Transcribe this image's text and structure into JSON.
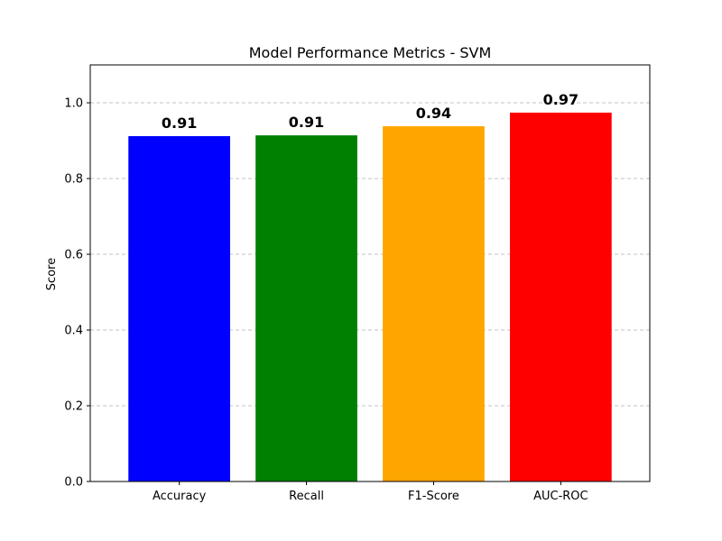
{
  "chart_data": {
    "type": "bar",
    "title": "Model Performance Metrics - SVM",
    "xlabel": "",
    "ylabel": "Score",
    "categories": [
      "Accuracy",
      "Recall",
      "F1-Score",
      "AUC-ROC"
    ],
    "values": [
      0.912,
      0.914,
      0.938,
      0.974
    ],
    "value_labels": [
      "0.91",
      "0.91",
      "0.94",
      "0.97"
    ],
    "colors": [
      "#0000ff",
      "#008000",
      "#ffa500",
      "#ff0000"
    ],
    "ylim": [
      0,
      1.1
    ],
    "yticks": [
      0.0,
      0.2,
      0.4,
      0.6,
      0.8,
      1.0
    ],
    "ytick_labels": [
      "0.0",
      "0.2",
      "0.4",
      "0.6",
      "0.8",
      "1.0"
    ],
    "grid": "y-dashed",
    "legend": "none"
  }
}
